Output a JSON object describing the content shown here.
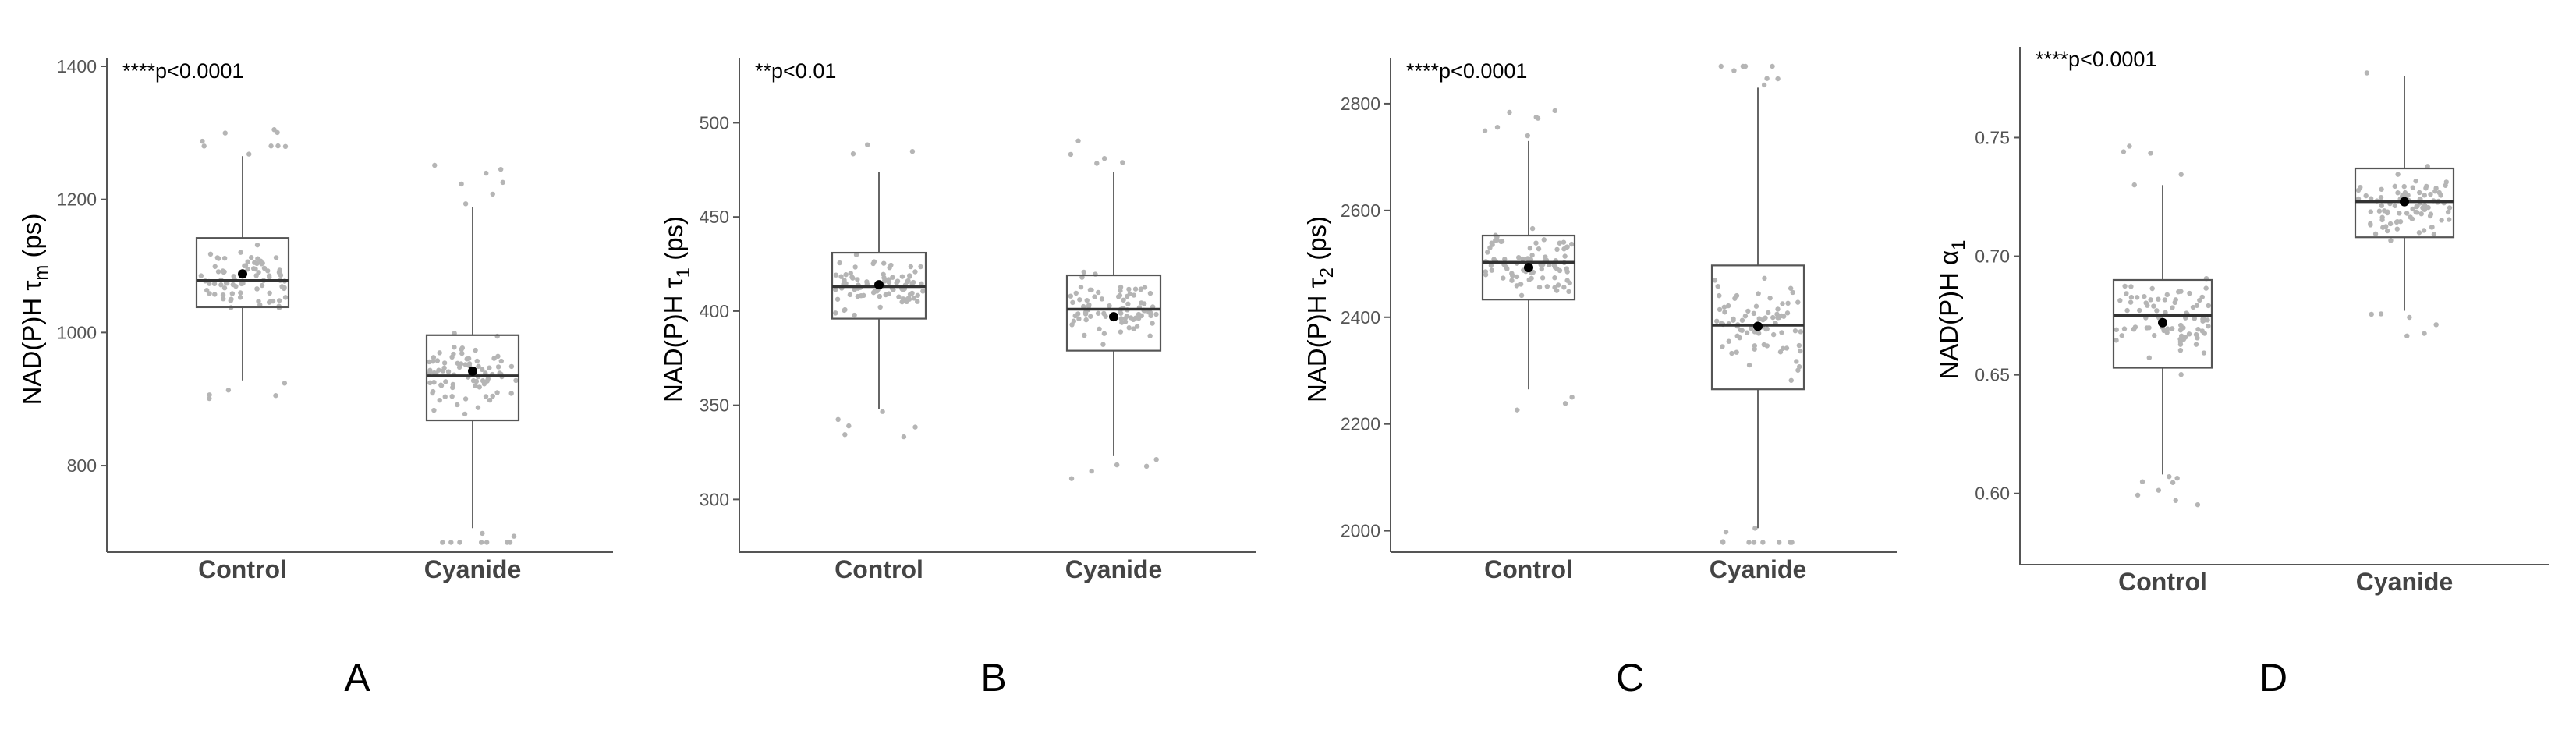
{
  "chart_data": [
    {
      "type": "box",
      "panel_label": "A",
      "ylabel": "NAD(P)H τ",
      "ylabel_sub": "m",
      "ylabel_unit": " (ps)",
      "annotation": "****p<0.0001",
      "categories": [
        "Control",
        "Cyanide"
      ],
      "ylim": [
        670,
        1400
      ],
      "yticks": [
        800,
        1000,
        1200,
        1400
      ],
      "series": [
        {
          "category": "Control",
          "whisker_low": 928,
          "q1": 1038,
          "median": 1078,
          "q3": 1142,
          "whisker_high": 1265,
          "mean": 1088
        },
        {
          "category": "Cyanide",
          "whisker_low": 706,
          "q1": 868,
          "median": 935,
          "q3": 996,
          "whisker_high": 1188,
          "mean": 942
        }
      ]
    },
    {
      "type": "box",
      "panel_label": "B",
      "ylabel": "NAD(P)H τ",
      "ylabel_sub": "1",
      "ylabel_unit": " (ps)",
      "annotation": "**p<0.01",
      "categories": [
        "Control",
        "Cyanide"
      ],
      "ylim": [
        272,
        530
      ],
      "yticks": [
        300,
        350,
        400,
        450,
        500
      ],
      "series": [
        {
          "category": "Control",
          "whisker_low": 348,
          "q1": 396,
          "median": 413,
          "q3": 431,
          "whisker_high": 474,
          "mean": 414
        },
        {
          "category": "Cyanide",
          "whisker_low": 323,
          "q1": 379,
          "median": 401,
          "q3": 419,
          "whisker_high": 474,
          "mean": 397
        }
      ]
    },
    {
      "type": "box",
      "panel_label": "C",
      "ylabel": "NAD(P)H τ",
      "ylabel_sub": "2",
      "ylabel_unit": " (ps)",
      "annotation": "****p<0.0001",
      "categories": [
        "Control",
        "Cyanide"
      ],
      "ylim": [
        1960,
        2870
      ],
      "yticks": [
        2000,
        2200,
        2400,
        2600,
        2800
      ],
      "series": [
        {
          "category": "Control",
          "whisker_low": 2265,
          "q1": 2433,
          "median": 2503,
          "q3": 2553,
          "whisker_high": 2730,
          "mean": 2493
        },
        {
          "category": "Cyanide",
          "whisker_low": 2005,
          "q1": 2265,
          "median": 2385,
          "q3": 2497,
          "whisker_high": 2830,
          "mean": 2383
        }
      ]
    },
    {
      "type": "box",
      "panel_label": "D",
      "ylabel": "NAD(P)H α",
      "ylabel_sub": "1",
      "ylabel_unit": "",
      "annotation": "****p<0.0001",
      "categories": [
        "Control",
        "Cyanide"
      ],
      "ylim": [
        0.57,
        0.785
      ],
      "yticks": [
        0.6,
        0.65,
        0.7,
        0.75
      ],
      "series": [
        {
          "category": "Control",
          "whisker_low": 0.608,
          "q1": 0.653,
          "median": 0.675,
          "q3": 0.69,
          "whisker_high": 0.73,
          "mean": 0.672
        },
        {
          "category": "Cyanide",
          "whisker_low": 0.677,
          "q1": 0.708,
          "median": 0.723,
          "q3": 0.737,
          "whisker_high": 0.776,
          "mean": 0.723
        }
      ]
    }
  ]
}
